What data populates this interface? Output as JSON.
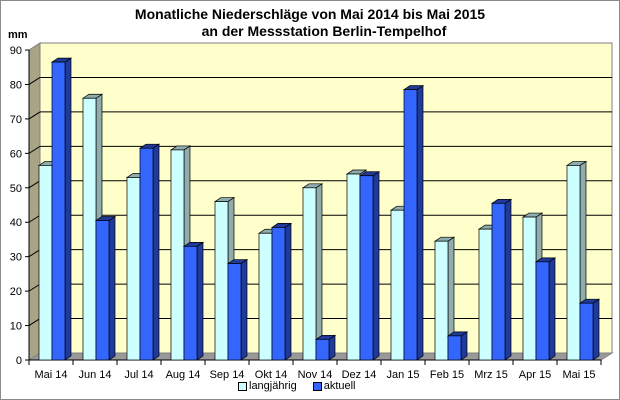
{
  "chart_data": {
    "type": "bar",
    "title": "Monatliche Niederschläge von Mai 2014 bis Mai 2015",
    "subtitle": "an der Messstation Berlin-Tempelhof",
    "xlabel": "",
    "ylabel": "mm",
    "ylim": [
      0,
      90
    ],
    "yticks": [
      0,
      10,
      20,
      30,
      40,
      50,
      60,
      70,
      80,
      90
    ],
    "grid": true,
    "three_d": true,
    "legend_position": "bottom",
    "categories": [
      "Mai 14",
      "Jun 14",
      "Jul 14",
      "Aug 14",
      "Sep 14",
      "Okt 14",
      "Nov 14",
      "Dez 14",
      "Jan 15",
      "Feb 15",
      "Mrz 15",
      "Apr 15",
      "Mai 15"
    ],
    "series": [
      {
        "name": "langjährig",
        "color": "#ccffff",
        "side_color": "#8fadad",
        "values": [
          56.5,
          76,
          53,
          61,
          46,
          36.8,
          50,
          54,
          43.5,
          34.5,
          38,
          41.5,
          56.5
        ]
      },
      {
        "name": "aktuell",
        "color": "#3366ff",
        "side_color": "#1f3a99",
        "values": [
          86.5,
          40.5,
          61.5,
          33,
          28,
          38.5,
          6,
          53.5,
          78.5,
          7,
          45.5,
          28.5,
          16.5
        ]
      }
    ]
  },
  "colors": {
    "back_wall": "#ffffcc",
    "side_wall": "#a9a486",
    "floor": "#999999",
    "grid": "#000000"
  },
  "legend": {
    "items": [
      {
        "label": "langjährig",
        "color": "#ccffff"
      },
      {
        "label": "aktuell",
        "color": "#3366ff"
      }
    ]
  }
}
